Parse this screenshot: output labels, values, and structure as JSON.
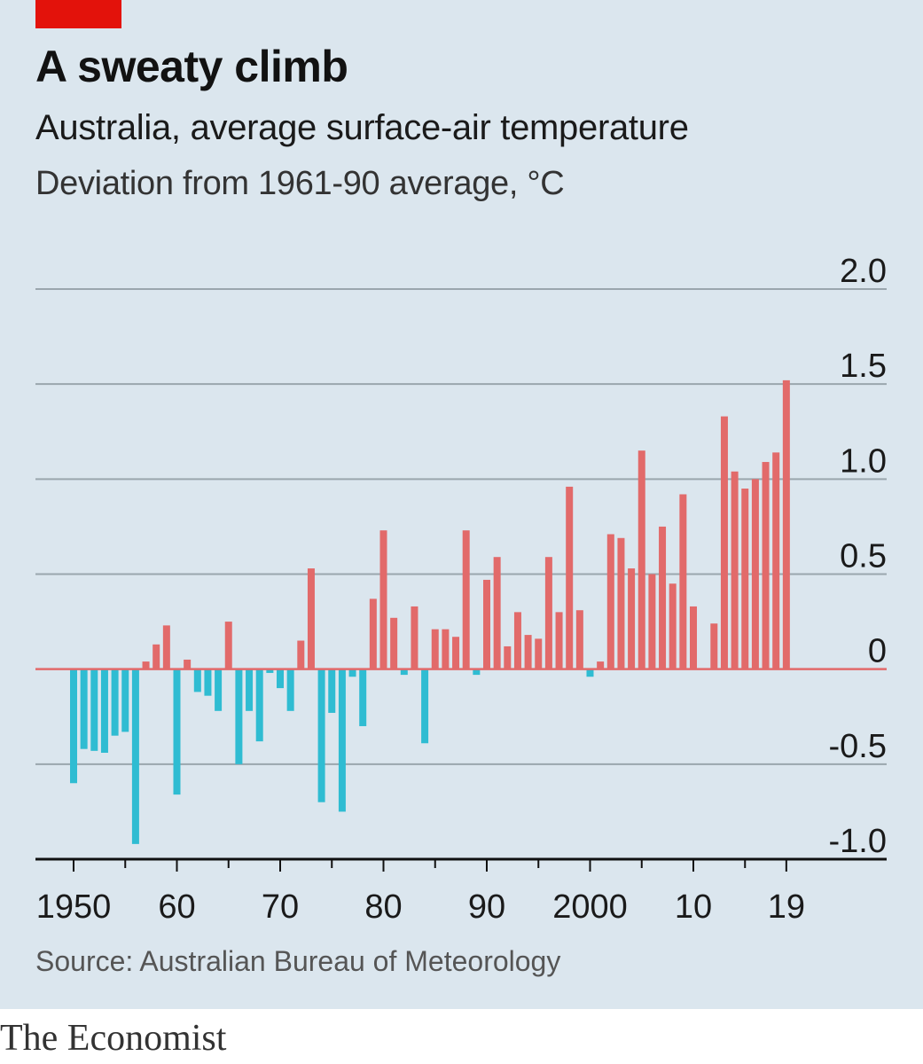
{
  "colors": {
    "background": "#dbe6ee",
    "positive": "#e26a6a",
    "negative": "#2fbcd2",
    "accent": "#e3120b",
    "grid": "#9aa6ad",
    "axis": "#111111"
  },
  "title": "A sweaty climb",
  "subtitle": "Australia, average surface-air temperature",
  "unit_label": "Deviation from 1961-90 average, °C",
  "source": "Source: Australian Bureau of Meteorology",
  "brand": "The Economist",
  "chart_data": {
    "type": "bar",
    "title": "A sweaty climb",
    "subtitle": "Australia, average surface-air temperature",
    "ylabel": "Deviation from 1961-90 average, °C",
    "xlabel": "",
    "ylim": [
      -1.0,
      2.0
    ],
    "yticks": [
      2.0,
      1.5,
      1.0,
      0.5,
      0,
      -0.5,
      -1.0
    ],
    "ytick_labels": [
      "2.0",
      "1.5",
      "1.0",
      "0.5",
      "0",
      "-0.5",
      "-1.0"
    ],
    "xticks": [
      1950,
      1960,
      1970,
      1980,
      1990,
      2000,
      2010,
      2019
    ],
    "xtick_labels": [
      "1950",
      "60",
      "70",
      "80",
      "90",
      "2000",
      "10",
      "19"
    ],
    "grid": true,
    "years": [
      1950,
      1951,
      1952,
      1953,
      1954,
      1955,
      1956,
      1957,
      1958,
      1959,
      1960,
      1961,
      1962,
      1963,
      1964,
      1965,
      1966,
      1967,
      1968,
      1969,
      1970,
      1971,
      1972,
      1973,
      1974,
      1975,
      1976,
      1977,
      1978,
      1979,
      1980,
      1981,
      1982,
      1983,
      1984,
      1985,
      1986,
      1987,
      1988,
      1989,
      1990,
      1991,
      1992,
      1993,
      1994,
      1995,
      1996,
      1997,
      1998,
      1999,
      2000,
      2001,
      2002,
      2003,
      2004,
      2005,
      2006,
      2007,
      2008,
      2009,
      2010,
      2011,
      2012,
      2013,
      2014,
      2015,
      2016,
      2017,
      2018,
      2019
    ],
    "values": [
      -0.6,
      -0.42,
      -0.43,
      -0.44,
      -0.35,
      -0.33,
      -0.92,
      0.04,
      0.13,
      0.23,
      -0.66,
      0.05,
      -0.12,
      -0.14,
      -0.22,
      0.25,
      -0.5,
      -0.22,
      -0.38,
      -0.02,
      -0.1,
      -0.22,
      0.15,
      0.53,
      -0.7,
      -0.23,
      -0.75,
      -0.04,
      -0.3,
      0.37,
      0.73,
      0.27,
      -0.03,
      0.33,
      -0.39,
      0.21,
      0.21,
      0.17,
      0.73,
      -0.03,
      0.47,
      0.59,
      0.12,
      0.3,
      0.18,
      0.16,
      0.59,
      0.3,
      0.96,
      0.31,
      -0.04,
      0.04,
      0.71,
      0.69,
      0.53,
      1.15,
      0.5,
      0.75,
      0.45,
      0.92,
      0.33,
      0.0,
      0.24,
      1.33,
      1.04,
      0.95,
      1.0,
      1.09,
      1.14,
      1.52
    ]
  }
}
